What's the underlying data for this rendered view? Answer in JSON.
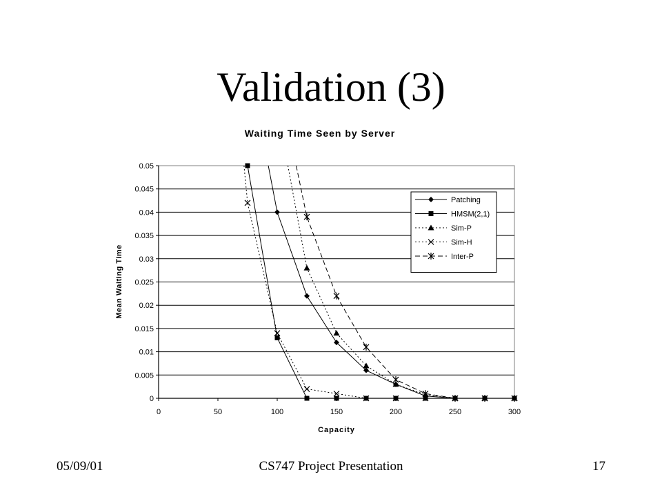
{
  "slide": {
    "title": "Validation (3)",
    "footer_date": "05/09/01",
    "footer_center": "CS747 Project Presentation",
    "page_number": "17"
  },
  "chart_data": {
    "type": "line",
    "title": "Waiting Time Seen by Server",
    "xlabel": "Capacity",
    "ylabel": "Mean Waiting Time",
    "xlim": [
      0,
      300
    ],
    "ylim": [
      0,
      0.05
    ],
    "xticks": [
      "0",
      "50",
      "100",
      "150",
      "200",
      "250",
      "300"
    ],
    "yticks": [
      "0",
      "0.005",
      "0.01",
      "0.015",
      "0.02",
      "0.025",
      "0.03",
      "0.035",
      "0.04",
      "0.045",
      "0.05"
    ],
    "grid": "horizontal",
    "legend_position": "top-right",
    "series": [
      {
        "name": "Patching",
        "marker": "diamond",
        "line": "solid",
        "color": "#000000",
        "x": [
          100,
          125,
          150,
          175,
          200,
          225,
          250,
          275,
          300
        ],
        "y": [
          0.04,
          0.022,
          0.012,
          0.006,
          0.003,
          0.0005,
          0,
          0,
          0
        ],
        "lead_in": {
          "x": 92.5,
          "y": 0.05
        }
      },
      {
        "name": "HMSM(2,1)",
        "marker": "square",
        "line": "solid",
        "color": "#000000",
        "x": [
          75,
          100,
          125,
          150,
          175,
          200,
          225,
          250,
          275,
          300
        ],
        "y": [
          0.05,
          0.013,
          0,
          0,
          0,
          0,
          0,
          0,
          0,
          0
        ]
      },
      {
        "name": "Sim-P",
        "marker": "triangle",
        "line": "dotted",
        "color": "#000000",
        "x": [
          125,
          150,
          175,
          200,
          225,
          250,
          275,
          300
        ],
        "y": [
          0.028,
          0.014,
          0.007,
          0.003,
          0.0008,
          0,
          0,
          0
        ],
        "lead_in": {
          "x": 109,
          "y": 0.05
        }
      },
      {
        "name": "Sim-H",
        "marker": "x",
        "line": "dotted",
        "color": "#000000",
        "x": [
          75,
          100,
          125,
          150,
          175,
          200,
          225,
          250,
          275,
          300
        ],
        "y": [
          0.042,
          0.014,
          0.002,
          0.001,
          0,
          0,
          0,
          0,
          0,
          0
        ],
        "lead_in": {
          "x": 72,
          "y": 0.05
        }
      },
      {
        "name": "Inter-P",
        "marker": "star",
        "line": "dashed",
        "color": "#000000",
        "x": [
          125,
          150,
          175,
          200,
          225,
          250,
          275,
          300
        ],
        "y": [
          0.039,
          0.022,
          0.011,
          0.004,
          0.001,
          0,
          0,
          0
        ],
        "lead_in": {
          "x": 116,
          "y": 0.05
        }
      }
    ]
  }
}
